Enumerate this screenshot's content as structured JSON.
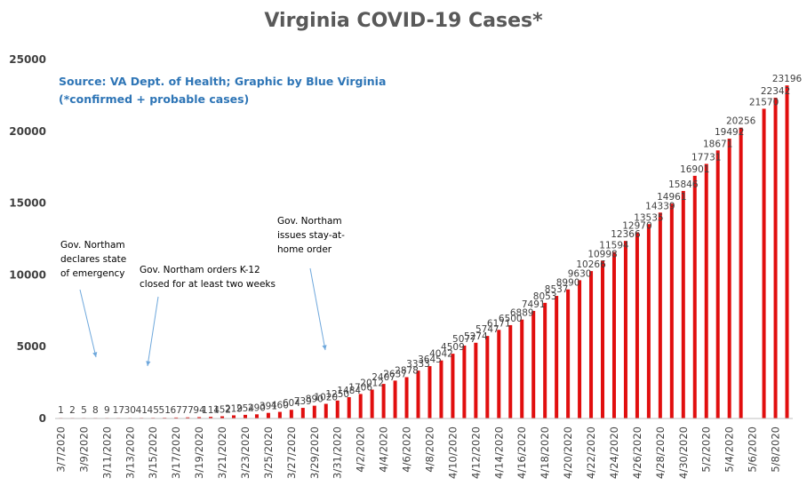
{
  "chart_data": {
    "type": "bar",
    "title": "Virginia COVID-19 Cases*",
    "source_lines": [
      "Source: VA Dept. of Health; Graphic by Blue Virginia",
      "(*confirmed + probable cases)"
    ],
    "xlabel": "",
    "ylabel": "",
    "ylim": [
      0,
      25000
    ],
    "yticks": [
      0,
      5000,
      10000,
      15000,
      20000,
      25000
    ],
    "grid": false,
    "legend": "none",
    "colors": {
      "bar": "#e10e0e",
      "axis": "#bfbfbf",
      "arrow": "#6fa8dc"
    },
    "categories": [
      "3/7/2020",
      "3/8/2020",
      "3/9/2020",
      "3/10/2020",
      "3/11/2020",
      "3/12/2020",
      "3/13/2020",
      "3/14/2020",
      "3/15/2020",
      "3/16/2020",
      "3/17/2020",
      "3/18/2020",
      "3/19/2020",
      "3/20/2020",
      "3/21/2020",
      "3/22/2020",
      "3/23/2020",
      "3/24/2020",
      "3/25/2020",
      "3/26/2020",
      "3/27/2020",
      "3/28/2020",
      "3/29/2020",
      "3/30/2020",
      "3/31/2020",
      "4/1/2020",
      "4/2/2020",
      "4/3/2020",
      "4/4/2020",
      "4/5/2020",
      "4/6/2020",
      "4/7/2020",
      "4/8/2020",
      "4/9/2020",
      "4/10/2020",
      "4/11/2020",
      "4/12/2020",
      "4/13/2020",
      "4/14/2020",
      "4/15/2020",
      "4/16/2020",
      "4/17/2020",
      "4/18/2020",
      "4/19/2020",
      "4/20/2020",
      "4/21/2020",
      "4/22/2020",
      "4/23/2020",
      "4/24/2020",
      "4/25/2020",
      "4/26/2020",
      "4/27/2020",
      "4/28/2020",
      "4/29/2020",
      "4/30/2020",
      "5/1/2020",
      "5/2/2020",
      "5/3/2020",
      "5/4/2020",
      "5/5/2020",
      "5/6/2020",
      "5/7/2020",
      "5/8/2020",
      "5/9/2020"
    ],
    "tick_labels": [
      "3/7/2020",
      "3/9/2020",
      "3/11/2020",
      "3/13/2020",
      "3/15/2020",
      "3/17/2020",
      "3/19/2020",
      "3/21/2020",
      "3/23/2020",
      "3/25/2020",
      "3/27/2020",
      "3/29/2020",
      "3/31/2020",
      "4/2/2020",
      "4/4/2020",
      "4/6/2020",
      "4/8/2020",
      "4/10/2020",
      "4/12/2020",
      "4/14/2020",
      "4/16/2020",
      "4/18/2020",
      "4/20/2020",
      "4/22/2020",
      "4/24/2020",
      "4/26/2020",
      "4/28/2020",
      "4/30/2020",
      "5/2/2020",
      "5/4/2020",
      "5/6/2020",
      "5/8/2020"
    ],
    "values": [
      1,
      2,
      5,
      8,
      9,
      17,
      30,
      41,
      45,
      51,
      67,
      77,
      94,
      114,
      152,
      219,
      254,
      290,
      391,
      460,
      604,
      739,
      890,
      1020,
      1250,
      1484,
      1706,
      2012,
      2407,
      2637,
      2878,
      3333,
      3645,
      4042,
      4509,
      5077,
      5274,
      5747,
      6171,
      6500,
      6889,
      7491,
      8053,
      8537,
      8990,
      9630,
      10266,
      10998,
      11594,
      12366,
      12970,
      13535,
      14339,
      14961,
      15846,
      16901,
      17731,
      18671,
      19492,
      20256,
      null,
      21570,
      22342,
      23196
    ],
    "data_labels": [
      "1",
      "2",
      "5",
      "8",
      "9",
      "17",
      "30",
      "41",
      "45",
      "51",
      "67",
      "77",
      "94",
      "114",
      "152",
      "219",
      "254",
      "290",
      "391",
      "460",
      "604",
      "739",
      "890",
      "1020",
      "1250",
      "1484",
      "1706",
      "2012",
      "2407",
      "2637",
      "2878",
      "3333",
      "3645",
      "4042",
      "4509",
      "5077",
      "5274",
      "5747",
      "6171",
      "6500",
      "6889",
      "7491",
      "8053",
      "8537",
      "8990",
      "9630",
      "10266",
      "10998",
      "11594",
      "12366",
      "12970",
      "13535",
      "14339",
      "14961",
      "15846",
      "16901",
      "17731",
      "18671",
      "19492",
      "20256",
      "",
      "21570",
      "22342",
      "23196"
    ],
    "annotations": [
      {
        "lines": [
          "Gov. Northam",
          "declares state",
          "of emergency"
        ],
        "target_category": "3/10/2020"
      },
      {
        "lines": [
          "Gov. Northam orders K-12",
          "closed  for at least two weeks"
        ],
        "target_category": "3/13/2020"
      },
      {
        "lines": [
          "Gov. Northam",
          "issues stay-at-",
          "home order"
        ],
        "target_category": "3/30/2020"
      }
    ]
  }
}
